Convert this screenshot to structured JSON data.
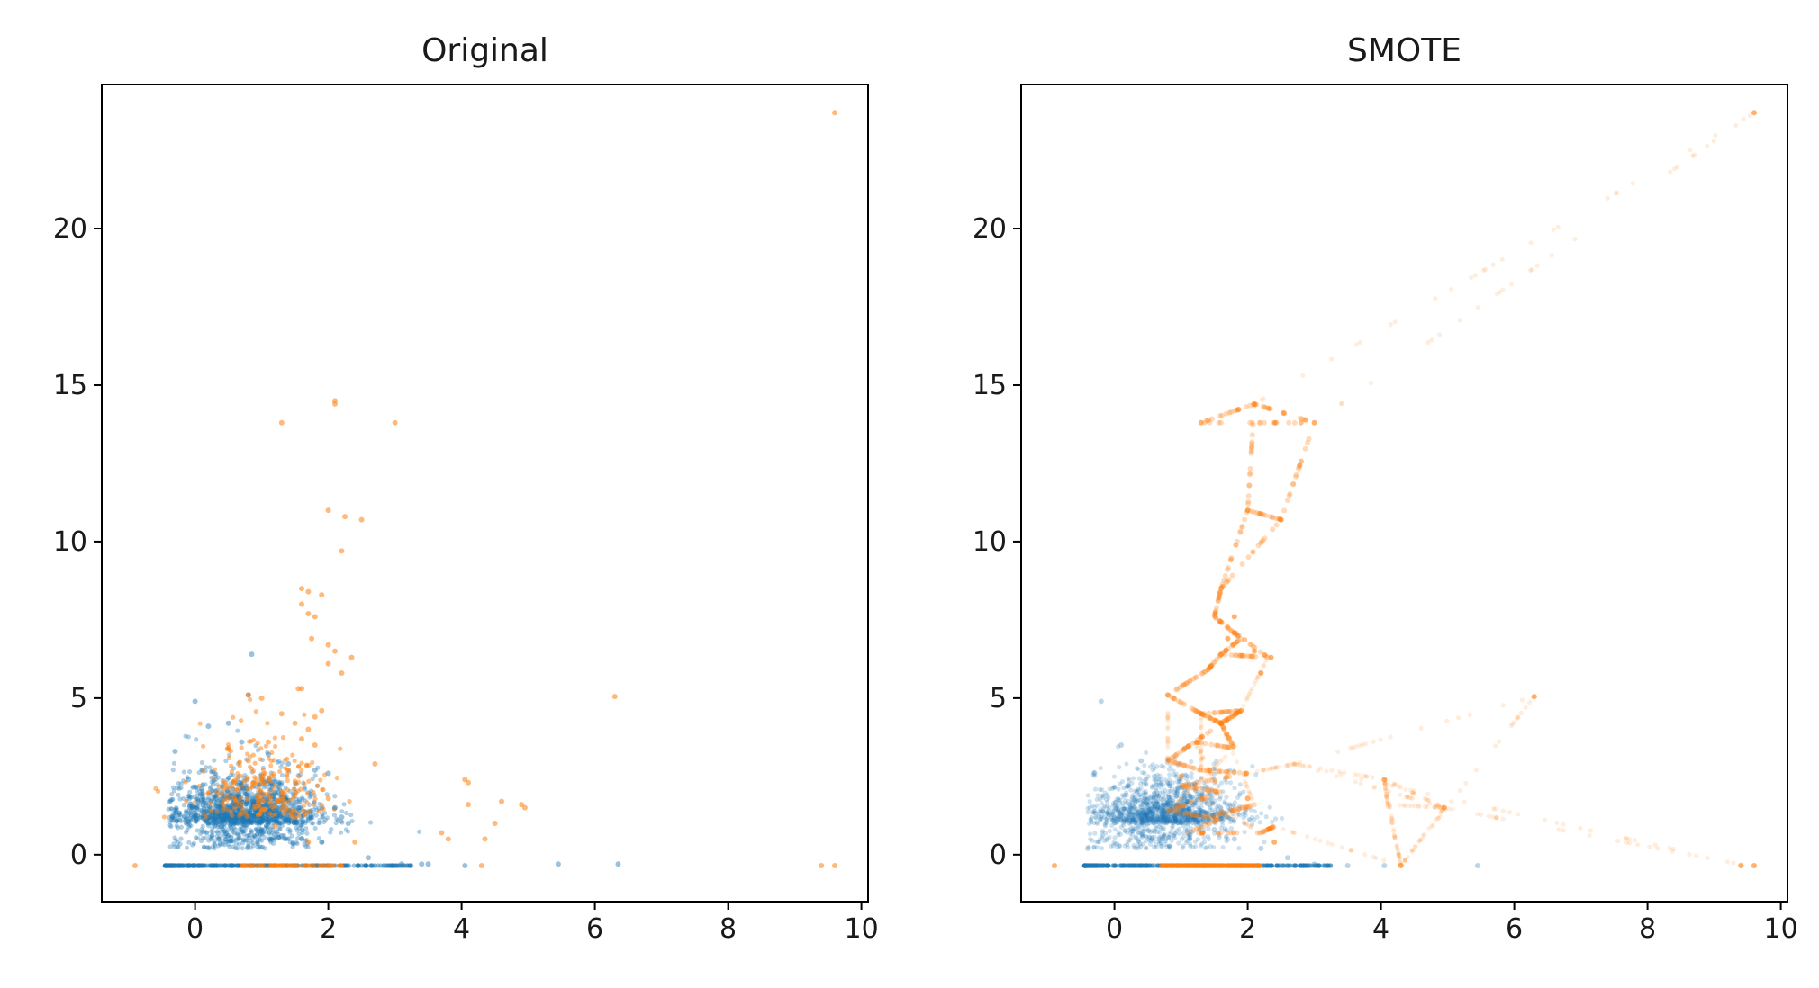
{
  "chart_data": [
    {
      "type": "scatter",
      "title": "Original",
      "xlabel": "",
      "ylabel": "",
      "xlim": [
        -1.4,
        10.1
      ],
      "ylim": [
        -1.5,
        24.6
      ],
      "xticks": [
        0,
        2,
        4,
        6,
        8,
        10
      ],
      "yticks": [
        0,
        5,
        10,
        15,
        20
      ],
      "xtick_labels": [
        "0",
        "2",
        "4",
        "6",
        "8",
        "10"
      ],
      "ytick_labels": [
        "0",
        "5",
        "10",
        "15",
        "20"
      ],
      "grid": false,
      "legend": "none",
      "series": [
        {
          "color": "#1f77b4",
          "opacity": 0.45,
          "points": [
            [
              0.0,
              4.9
            ],
            [
              -0.3,
              3.3
            ],
            [
              0.2,
              4.1
            ],
            [
              0.5,
              4.2
            ],
            [
              0.8,
              5.1
            ],
            [
              0.85,
              6.4
            ],
            [
              0.7,
              3.6
            ],
            [
              1.1,
              3.2
            ],
            [
              1.4,
              2.9
            ],
            [
              1.8,
              2.7
            ],
            [
              2.0,
              2.6
            ],
            [
              2.3,
              1.0
            ],
            [
              2.6,
              -0.1
            ],
            [
              3.1,
              -0.3
            ],
            [
              3.4,
              -0.3
            ],
            [
              3.5,
              -0.3
            ],
            [
              4.05,
              -0.35
            ],
            [
              5.45,
              -0.3
            ],
            [
              6.35,
              -0.3
            ],
            [
              2.1,
              1.5
            ],
            [
              2.2,
              1.2
            ],
            [
              -0.1,
              2.4
            ],
            [
              0.1,
              2.1
            ],
            [
              0.3,
              1.8
            ],
            [
              0.6,
              1.6
            ],
            [
              0.9,
              1.5
            ],
            [
              1.2,
              1.4
            ],
            [
              1.5,
              1.3
            ],
            [
              1.7,
              1.2
            ],
            [
              0.4,
              0.9
            ],
            [
              0.7,
              0.8
            ],
            [
              1.0,
              0.7
            ],
            [
              1.3,
              0.6
            ],
            [
              1.6,
              0.5
            ],
            [
              1.9,
              0.4
            ]
          ]
        },
        {
          "color": "#ff7f0e",
          "opacity": 0.55,
          "points": [
            [
              -0.9,
              -0.35
            ],
            [
              1.3,
              13.8
            ],
            [
              2.1,
              14.4
            ],
            [
              2.1,
              14.5
            ],
            [
              3.0,
              13.8
            ],
            [
              2.0,
              11.0
            ],
            [
              2.25,
              10.8
            ],
            [
              2.5,
              10.7
            ],
            [
              2.2,
              9.7
            ],
            [
              1.6,
              8.5
            ],
            [
              1.7,
              8.4
            ],
            [
              1.6,
              8.0
            ],
            [
              1.8,
              7.6
            ],
            [
              1.9,
              8.3
            ],
            [
              1.7,
              7.7
            ],
            [
              1.75,
              6.9
            ],
            [
              2.0,
              6.7
            ],
            [
              2.1,
              6.5
            ],
            [
              2.0,
              6.1
            ],
            [
              2.2,
              5.8
            ],
            [
              2.35,
              6.3
            ],
            [
              1.55,
              5.3
            ],
            [
              1.6,
              5.3
            ],
            [
              0.8,
              5.1
            ],
            [
              1.0,
              5.0
            ],
            [
              1.3,
              4.5
            ],
            [
              1.9,
              4.6
            ],
            [
              1.8,
              4.4
            ],
            [
              1.7,
              4.0
            ],
            [
              1.5,
              4.2
            ],
            [
              1.6,
              3.7
            ],
            [
              1.8,
              3.5
            ],
            [
              2.7,
              2.9
            ],
            [
              4.05,
              2.4
            ],
            [
              4.1,
              2.3
            ],
            [
              4.1,
              1.6
            ],
            [
              4.6,
              1.7
            ],
            [
              4.9,
              1.6
            ],
            [
              4.95,
              1.5
            ],
            [
              4.5,
              1.0
            ],
            [
              4.35,
              0.5
            ],
            [
              3.7,
              0.7
            ],
            [
              3.8,
              0.5
            ],
            [
              4.3,
              -0.35
            ],
            [
              6.3,
              5.05
            ],
            [
              9.6,
              23.7
            ],
            [
              9.4,
              -0.35
            ],
            [
              9.6,
              -0.35
            ],
            [
              1.0,
              2.5
            ],
            [
              1.3,
              2.0
            ],
            [
              0.9,
              1.5
            ],
            [
              1.5,
              1.2
            ],
            [
              1.2,
              0.9
            ],
            [
              1.7,
              0.4
            ],
            [
              2.4,
              0.4
            ],
            [
              2.0,
              1.8
            ],
            [
              0.8,
              3.0
            ],
            [
              1.1,
              3.6
            ],
            [
              1.4,
              2.7
            ]
          ]
        }
      ]
    },
    {
      "type": "scatter",
      "title": "SMOTE",
      "xlabel": "",
      "ylabel": "",
      "xlim": [
        -1.4,
        10.1
      ],
      "ylim": [
        -1.5,
        24.6
      ],
      "xticks": [
        0,
        2,
        4,
        6,
        8,
        10
      ],
      "yticks": [
        0,
        5,
        10,
        15,
        20
      ],
      "xtick_labels": [
        "0",
        "2",
        "4",
        "6",
        "8",
        "10"
      ],
      "ytick_labels": [
        "0",
        "5",
        "10",
        "15",
        "20"
      ],
      "grid": false,
      "legend": "none",
      "series": [
        {
          "color": "#1f77b4",
          "opacity": 0.3,
          "points": [
            [
              -0.2,
              4.9
            ],
            [
              -0.3,
              2.6
            ],
            [
              0.1,
              3.5
            ],
            [
              0.4,
              3.0
            ],
            [
              0.2,
              2.2
            ],
            [
              0.6,
              2.5
            ],
            [
              0.9,
              2.0
            ],
            [
              0.3,
              1.5
            ],
            [
              0.5,
              1.0
            ],
            [
              1.2,
              1.3
            ],
            [
              1.5,
              0.8
            ],
            [
              1.8,
              0.5
            ],
            [
              0.7,
              0.4
            ],
            [
              2.2,
              0.2
            ],
            [
              2.6,
              -0.1
            ],
            [
              3.0,
              -0.3
            ],
            [
              3.5,
              -0.35
            ],
            [
              4.05,
              -0.35
            ],
            [
              5.45,
              -0.35
            ],
            [
              -0.4,
              0.2
            ]
          ]
        },
        {
          "color": "#ff7f0e",
          "opacity": 0.6,
          "points": [
            [
              -0.9,
              -0.35
            ],
            [
              1.3,
              13.8
            ],
            [
              2.1,
              14.4
            ],
            [
              3.0,
              13.8
            ],
            [
              2.0,
              11.0
            ],
            [
              2.5,
              10.7
            ],
            [
              1.6,
              8.5
            ],
            [
              1.8,
              7.6
            ],
            [
              1.7,
              6.9
            ],
            [
              2.1,
              6.5
            ],
            [
              2.2,
              5.8
            ],
            [
              2.35,
              6.3
            ],
            [
              0.8,
              5.1
            ],
            [
              1.3,
              4.5
            ],
            [
              1.6,
              4.2
            ],
            [
              1.9,
              4.6
            ],
            [
              4.05,
              2.4
            ],
            [
              4.95,
              1.5
            ],
            [
              4.3,
              -0.35
            ],
            [
              6.3,
              5.05
            ],
            [
              9.6,
              23.7
            ],
            [
              9.4,
              -0.35
            ],
            [
              9.6,
              -0.35
            ],
            [
              1.0,
              2.5
            ],
            [
              1.5,
              1.2
            ],
            [
              2.0,
              1.8
            ],
            [
              2.4,
              0.4
            ]
          ]
        }
      ]
    }
  ]
}
